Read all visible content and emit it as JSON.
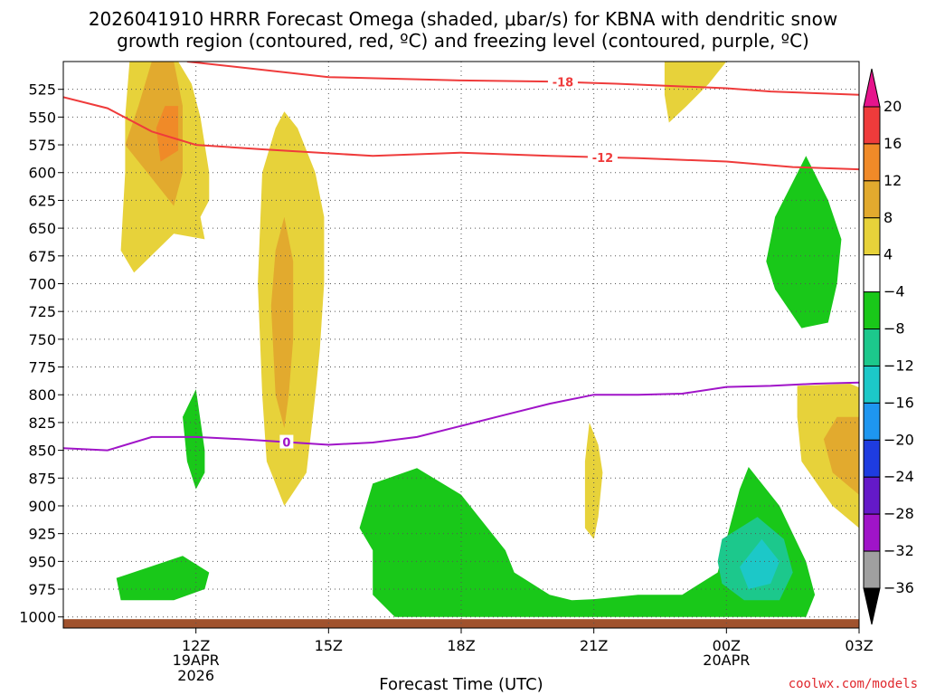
{
  "chart_data": {
    "type": "contour",
    "title_lines": [
      "2026041910 HRRR Forecast Omega (shaded, μbar/s) for KBNA with dendritic snow",
      "growth region (contoured, red, ºC) and freezing level (contoured, purple, ºC)"
    ],
    "xlabel": "Forecast Time (UTC)",
    "credit": "coolwx.com/models",
    "x_range_hours": [
      8,
      26
    ],
    "y_range_hpa": [
      1010,
      500
    ],
    "x_ticks": [
      {
        "hour": 11,
        "label": "12Z",
        "sub": [
          "19APR",
          "2026"
        ]
      },
      {
        "hour": 14,
        "label": "15Z",
        "sub": []
      },
      {
        "hour": 17,
        "label": "18Z",
        "sub": []
      },
      {
        "hour": 20,
        "label": "21Z",
        "sub": []
      },
      {
        "hour": 23,
        "label": "00Z",
        "sub": [
          "20APR"
        ]
      },
      {
        "hour": 26,
        "label": "03Z",
        "sub": []
      }
    ],
    "y_ticks": [
      525,
      550,
      575,
      600,
      625,
      650,
      675,
      700,
      725,
      750,
      775,
      800,
      825,
      850,
      875,
      900,
      925,
      950,
      975,
      1000
    ],
    "colorbar": {
      "labels": [
        "20",
        "16",
        "12",
        "8",
        "4",
        "−4",
        "−8",
        "−12",
        "−16",
        "−20",
        "−24",
        "−28",
        "−32",
        "−36"
      ],
      "colors": [
        "#ef3b3b",
        "#f08a28",
        "#e2aa2e",
        "#e7d23a",
        "#ffffff",
        "#19c819",
        "#1cc88c",
        "#1cc8c8",
        "#1e96f0",
        "#1e3ce0",
        "#6419c8",
        "#a014c8",
        "#a0a0a0"
      ],
      "top_arrow_color": "#e6148c",
      "bottom_arrow_color": "#000000"
    },
    "series": [
      {
        "name": "-18C isotherm",
        "value_label": "-18",
        "color": "#ef3b3b",
        "points": [
          [
            10.8,
            500
          ],
          [
            14,
            514
          ],
          [
            17,
            517
          ],
          [
            19,
            518
          ],
          [
            20.5,
            520
          ],
          [
            23,
            524
          ],
          [
            24,
            527
          ],
          [
            26,
            530
          ],
          [
            26.9,
            530
          ]
        ],
        "label_hour": 19.3
      },
      {
        "name": "-12C isotherm",
        "value_label": "-12",
        "color": "#ef3b3b",
        "points": [
          [
            8,
            532
          ],
          [
            9,
            542
          ],
          [
            10,
            563
          ],
          [
            11,
            575
          ],
          [
            12.5,
            579
          ],
          [
            15,
            585
          ],
          [
            17,
            582
          ],
          [
            19,
            585
          ],
          [
            21,
            587
          ],
          [
            23,
            590
          ],
          [
            24.5,
            595
          ],
          [
            26,
            597
          ],
          [
            26.9,
            597
          ]
        ],
        "label_hour": 20.2
      },
      {
        "name": "Freezing level 0C",
        "value_label": "0",
        "color": "#a014c8",
        "points": [
          [
            8,
            848
          ],
          [
            9,
            850
          ],
          [
            10,
            838
          ],
          [
            11,
            838
          ],
          [
            12,
            840
          ],
          [
            14,
            845
          ],
          [
            15,
            843
          ],
          [
            16,
            838
          ],
          [
            17,
            828
          ],
          [
            18,
            818
          ],
          [
            19,
            808
          ],
          [
            20,
            800
          ],
          [
            21,
            800
          ],
          [
            22,
            799
          ],
          [
            23,
            793
          ],
          [
            24,
            792
          ],
          [
            25,
            790
          ],
          [
            26,
            789
          ],
          [
            26.9,
            789
          ]
        ],
        "label_hour": 13.05
      }
    ],
    "omega_regions": [
      {
        "name": "upper-left ascent core",
        "level": 4,
        "points": [
          [
            9.5,
            500
          ],
          [
            10.6,
            500
          ],
          [
            10.9,
            520
          ],
          [
            11.1,
            550
          ],
          [
            11.3,
            600
          ],
          [
            11.3,
            625
          ],
          [
            11.1,
            640
          ],
          [
            11.2,
            660
          ],
          [
            10.5,
            655
          ],
          [
            9.6,
            690
          ],
          [
            9.3,
            670
          ],
          [
            9.4,
            600
          ],
          [
            9.4,
            550
          ],
          [
            9.5,
            500
          ]
        ]
      },
      {
        "name": "upper-left 8 core",
        "level": 8,
        "points": [
          [
            10.0,
            500
          ],
          [
            10.5,
            500
          ],
          [
            10.7,
            540
          ],
          [
            10.7,
            600
          ],
          [
            10.5,
            630
          ],
          [
            10.0,
            605
          ],
          [
            9.4,
            575
          ],
          [
            9.7,
            540
          ],
          [
            10.0,
            500
          ]
        ]
      },
      {
        "name": "upper-left 12 core",
        "level": 12,
        "points": [
          [
            10.3,
            540
          ],
          [
            10.6,
            540
          ],
          [
            10.6,
            580
          ],
          [
            10.2,
            590
          ],
          [
            10.1,
            560
          ],
          [
            10.3,
            540
          ]
        ]
      },
      {
        "name": "15Z column",
        "level": 4,
        "points": [
          [
            13.0,
            545
          ],
          [
            13.3,
            560
          ],
          [
            13.7,
            600
          ],
          [
            13.9,
            640
          ],
          [
            13.9,
            700
          ],
          [
            13.8,
            760
          ],
          [
            13.7,
            800
          ],
          [
            13.5,
            870
          ],
          [
            13.0,
            900
          ],
          [
            12.6,
            860
          ],
          [
            12.5,
            800
          ],
          [
            12.4,
            700
          ],
          [
            12.5,
            600
          ],
          [
            12.8,
            560
          ],
          [
            13.0,
            545
          ]
        ]
      },
      {
        "name": "15Z column 8 core",
        "level": 8,
        "points": [
          [
            13.0,
            640
          ],
          [
            13.2,
            680
          ],
          [
            13.2,
            750
          ],
          [
            13.1,
            800
          ],
          [
            13.0,
            830
          ],
          [
            12.8,
            800
          ],
          [
            12.7,
            720
          ],
          [
            12.8,
            670
          ],
          [
            13.0,
            640
          ]
        ]
      },
      {
        "name": "upper-right patch",
        "level": 4,
        "points": [
          [
            21.6,
            500
          ],
          [
            23.0,
            500
          ],
          [
            22.6,
            520
          ],
          [
            22.1,
            540
          ],
          [
            21.7,
            555
          ],
          [
            21.6,
            530
          ],
          [
            21.6,
            500
          ]
        ]
      },
      {
        "name": "lower-right cell",
        "level": 4,
        "points": [
          [
            24.6,
            792
          ],
          [
            25.8,
            790
          ],
          [
            26.4,
            800
          ],
          [
            26.8,
            830
          ],
          [
            26.7,
            880
          ],
          [
            26.0,
            920
          ],
          [
            25.4,
            900
          ],
          [
            24.7,
            860
          ],
          [
            24.6,
            820
          ],
          [
            24.6,
            792
          ]
        ]
      },
      {
        "name": "lower-right 8 core",
        "level": 8,
        "points": [
          [
            25.5,
            820
          ],
          [
            26.1,
            820
          ],
          [
            26.3,
            850
          ],
          [
            26.0,
            890
          ],
          [
            25.4,
            870
          ],
          [
            25.2,
            840
          ],
          [
            25.5,
            820
          ]
        ]
      },
      {
        "name": "20Z sliver",
        "level": 4,
        "points": [
          [
            19.9,
            825
          ],
          [
            20.1,
            845
          ],
          [
            20.2,
            870
          ],
          [
            20.1,
            910
          ],
          [
            20.0,
            930
          ],
          [
            19.8,
            920
          ],
          [
            19.8,
            860
          ],
          [
            19.9,
            825
          ]
        ]
      },
      {
        "name": "upper-right descent",
        "level": -4,
        "points": [
          [
            24.8,
            585
          ],
          [
            25.3,
            625
          ],
          [
            25.6,
            660
          ],
          [
            25.5,
            700
          ],
          [
            25.3,
            735
          ],
          [
            24.7,
            740
          ],
          [
            24.1,
            705
          ],
          [
            23.9,
            680
          ],
          [
            24.1,
            640
          ],
          [
            24.8,
            585
          ]
        ]
      },
      {
        "name": "12Z descent blob",
        "level": -4,
        "points": [
          [
            11,
            795
          ],
          [
            11.2,
            850
          ],
          [
            11.2,
            870
          ],
          [
            11.0,
            885
          ],
          [
            10.8,
            860
          ],
          [
            10.7,
            820
          ],
          [
            11,
            795
          ]
        ]
      },
      {
        "name": "lower-left descent",
        "level": -4,
        "points": [
          [
            9.2,
            965
          ],
          [
            10.7,
            945
          ],
          [
            11.3,
            960
          ],
          [
            11.2,
            975
          ],
          [
            10.5,
            985
          ],
          [
            9.3,
            985
          ],
          [
            9.2,
            965
          ]
        ]
      },
      {
        "name": "lower-mid descent",
        "level": -4,
        "points": [
          [
            15.0,
            880
          ],
          [
            16.0,
            866
          ],
          [
            17.0,
            890
          ],
          [
            18.0,
            940
          ],
          [
            18.2,
            960
          ],
          [
            19.0,
            980
          ],
          [
            19.5,
            985
          ],
          [
            20.0,
            984
          ],
          [
            21.0,
            980
          ],
          [
            22.0,
            980
          ],
          [
            22.8,
            960
          ],
          [
            23.3,
            885
          ],
          [
            23.5,
            865
          ],
          [
            24.2,
            900
          ],
          [
            24.8,
            950
          ],
          [
            25.0,
            980
          ],
          [
            24.8,
            1000
          ],
          [
            23.5,
            1000
          ],
          [
            22.0,
            1000
          ],
          [
            20.0,
            1000
          ],
          [
            17.5,
            1000
          ],
          [
            15.5,
            1000
          ],
          [
            15.0,
            980
          ],
          [
            15.0,
            940
          ],
          [
            14.7,
            920
          ],
          [
            15.0,
            880
          ]
        ]
      },
      {
        "name": "lower-right -8 region",
        "level": -8,
        "points": [
          [
            22.9,
            930
          ],
          [
            23.7,
            910
          ],
          [
            24.3,
            930
          ],
          [
            24.5,
            960
          ],
          [
            24.2,
            985
          ],
          [
            23.4,
            985
          ],
          [
            22.9,
            970
          ],
          [
            22.8,
            950
          ],
          [
            22.9,
            930
          ]
        ]
      },
      {
        "name": "lower-right -12 core",
        "level": -12,
        "points": [
          [
            23.8,
            930
          ],
          [
            24.2,
            950
          ],
          [
            24.0,
            970
          ],
          [
            23.5,
            975
          ],
          [
            23.3,
            955
          ],
          [
            23.8,
            930
          ]
        ]
      }
    ],
    "surface_fill_color": "#a0522d"
  }
}
